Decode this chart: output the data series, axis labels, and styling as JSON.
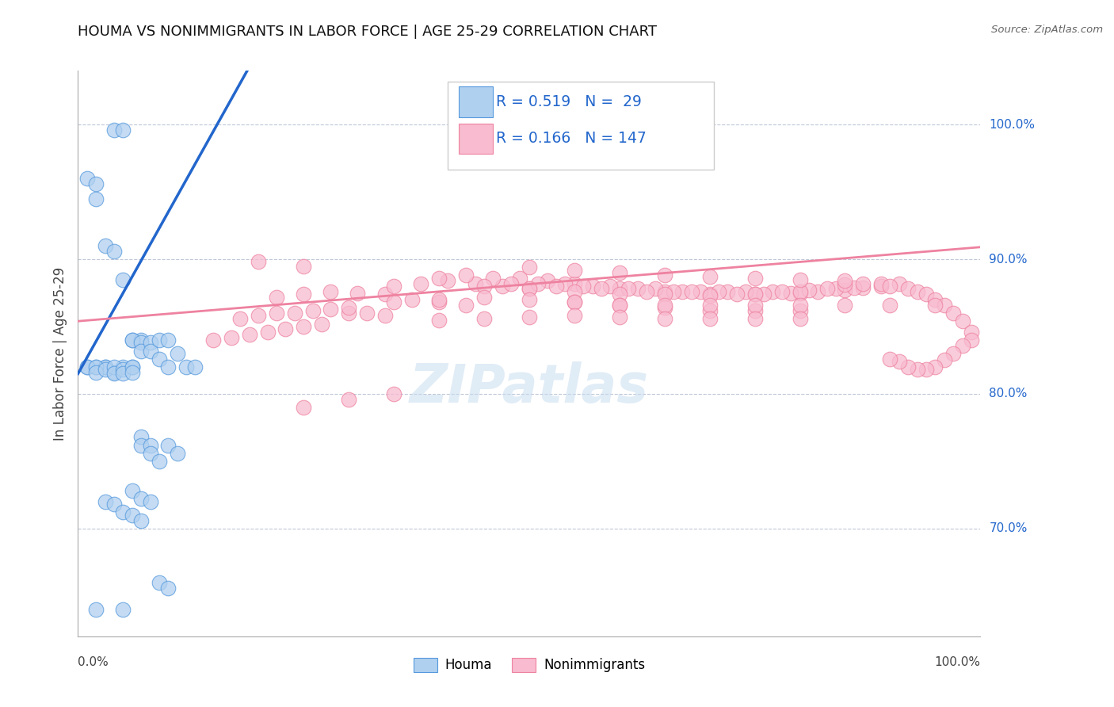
{
  "title": "HOUMA VS NONIMMIGRANTS IN LABOR FORCE | AGE 25-29 CORRELATION CHART",
  "source": "Source: ZipAtlas.com",
  "ylabel": "In Labor Force | Age 25-29",
  "ytick_labels": [
    "70.0%",
    "80.0%",
    "90.0%",
    "100.0%"
  ],
  "ytick_values": [
    0.7,
    0.8,
    0.9,
    1.0
  ],
  "xmin": 0.0,
  "xmax": 1.0,
  "ymin": 0.62,
  "ymax": 1.04,
  "houma_color": "#b0d0f0",
  "houma_edge_color": "#5599dd",
  "nonimm_color": "#f8bbd0",
  "nonimm_edge_color": "#ee82a0",
  "houma_line_color": "#2266cc",
  "nonimm_line_color": "#ee82a0",
  "houma_R": 0.519,
  "houma_N": 29,
  "nonimm_R": 0.166,
  "nonimm_N": 147,
  "watermark": "ZIPatlas",
  "watermark_color": "#c8ddf0",
  "houma_x": [
    0.04,
    0.05,
    0.01,
    0.02,
    0.02,
    0.03,
    0.04,
    0.05,
    0.06,
    0.07,
    0.06,
    0.07,
    0.07,
    0.08,
    0.08,
    0.09,
    0.09,
    0.1,
    0.1,
    0.11,
    0.12,
    0.13,
    0.02,
    0.03,
    0.04,
    0.05,
    0.06,
    0.03,
    0.01
  ],
  "houma_y": [
    0.996,
    0.996,
    0.96,
    0.956,
    0.945,
    0.91,
    0.906,
    0.885,
    0.84,
    0.84,
    0.84,
    0.838,
    0.832,
    0.838,
    0.832,
    0.84,
    0.826,
    0.84,
    0.82,
    0.83,
    0.82,
    0.82,
    0.82,
    0.82,
    0.816,
    0.82,
    0.82,
    0.82,
    0.82
  ],
  "houma_x_low": [
    0.01,
    0.02,
    0.02,
    0.03,
    0.04,
    0.04,
    0.05,
    0.05,
    0.06,
    0.06,
    0.07,
    0.07,
    0.08,
    0.08,
    0.09,
    0.1,
    0.11,
    0.06,
    0.07,
    0.08,
    0.03,
    0.04,
    0.05,
    0.06,
    0.07,
    0.09,
    0.1,
    0.05,
    0.02
  ],
  "houma_y_low": [
    0.82,
    0.82,
    0.816,
    0.818,
    0.82,
    0.815,
    0.818,
    0.815,
    0.82,
    0.816,
    0.768,
    0.762,
    0.762,
    0.756,
    0.75,
    0.762,
    0.756,
    0.728,
    0.722,
    0.72,
    0.72,
    0.718,
    0.712,
    0.71,
    0.706,
    0.66,
    0.656,
    0.64,
    0.64
  ],
  "nonimm_x": [
    0.15,
    0.17,
    0.19,
    0.21,
    0.23,
    0.25,
    0.27,
    0.18,
    0.2,
    0.22,
    0.24,
    0.26,
    0.28,
    0.3,
    0.32,
    0.34,
    0.22,
    0.25,
    0.28,
    0.31,
    0.34,
    0.37,
    0.4,
    0.43,
    0.35,
    0.38,
    0.41,
    0.44,
    0.47,
    0.5,
    0.4,
    0.43,
    0.46,
    0.49,
    0.52,
    0.55,
    0.45,
    0.48,
    0.51,
    0.54,
    0.57,
    0.6,
    0.5,
    0.53,
    0.56,
    0.59,
    0.62,
    0.65,
    0.55,
    0.58,
    0.61,
    0.64,
    0.67,
    0.7,
    0.6,
    0.63,
    0.66,
    0.69,
    0.72,
    0.75,
    0.65,
    0.68,
    0.71,
    0.74,
    0.77,
    0.8,
    0.7,
    0.73,
    0.76,
    0.79,
    0.82,
    0.85,
    0.75,
    0.78,
    0.81,
    0.84,
    0.87,
    0.8,
    0.83,
    0.86,
    0.89,
    0.85,
    0.87,
    0.89,
    0.91,
    0.9,
    0.92,
    0.93,
    0.94,
    0.95,
    0.96,
    0.97,
    0.98,
    0.99,
    0.99,
    0.98,
    0.97,
    0.96,
    0.95,
    0.94,
    0.93,
    0.92,
    0.91,
    0.9,
    0.3,
    0.35,
    0.4,
    0.45,
    0.5,
    0.55,
    0.6,
    0.65,
    0.7,
    0.75,
    0.8,
    0.2,
    0.25,
    0.55,
    0.6,
    0.65,
    0.7,
    0.75,
    0.8,
    0.85,
    0.9,
    0.95,
    0.5,
    0.55,
    0.6,
    0.65,
    0.7,
    0.75,
    0.8,
    0.85,
    0.4,
    0.45,
    0.5,
    0.55,
    0.6,
    0.65,
    0.7,
    0.75,
    0.8,
    0.25,
    0.3,
    0.35
  ],
  "nonimm_y": [
    0.84,
    0.842,
    0.844,
    0.846,
    0.848,
    0.85,
    0.852,
    0.856,
    0.858,
    0.86,
    0.86,
    0.862,
    0.863,
    0.86,
    0.86,
    0.858,
    0.872,
    0.874,
    0.876,
    0.875,
    0.874,
    0.87,
    0.868,
    0.866,
    0.88,
    0.882,
    0.884,
    0.882,
    0.88,
    0.878,
    0.886,
    0.888,
    0.886,
    0.886,
    0.884,
    0.882,
    0.88,
    0.882,
    0.882,
    0.882,
    0.88,
    0.878,
    0.878,
    0.88,
    0.88,
    0.88,
    0.878,
    0.876,
    0.876,
    0.878,
    0.878,
    0.878,
    0.876,
    0.874,
    0.874,
    0.876,
    0.876,
    0.876,
    0.876,
    0.874,
    0.874,
    0.876,
    0.876,
    0.876,
    0.876,
    0.875,
    0.873,
    0.874,
    0.874,
    0.875,
    0.876,
    0.877,
    0.874,
    0.876,
    0.877,
    0.878,
    0.879,
    0.876,
    0.878,
    0.879,
    0.88,
    0.881,
    0.882,
    0.882,
    0.882,
    0.88,
    0.878,
    0.876,
    0.874,
    0.87,
    0.866,
    0.86,
    0.854,
    0.846,
    0.84,
    0.836,
    0.83,
    0.825,
    0.82,
    0.818,
    0.818,
    0.82,
    0.824,
    0.826,
    0.864,
    0.868,
    0.87,
    0.872,
    0.87,
    0.868,
    0.866,
    0.864,
    0.862,
    0.862,
    0.862,
    0.898,
    0.895,
    0.868,
    0.866,
    0.866,
    0.866,
    0.866,
    0.866,
    0.866,
    0.866,
    0.866,
    0.894,
    0.892,
    0.89,
    0.888,
    0.887,
    0.886,
    0.885,
    0.884,
    0.855,
    0.856,
    0.857,
    0.858,
    0.857,
    0.856,
    0.856,
    0.856,
    0.856,
    0.79,
    0.796,
    0.8
  ]
}
